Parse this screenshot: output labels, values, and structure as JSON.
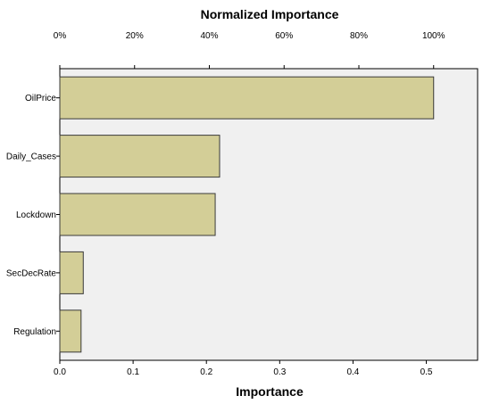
{
  "chart_data": {
    "type": "bar",
    "orientation": "horizontal",
    "title": "Normalized Importance",
    "xlabel": "Importance",
    "ylabel": "",
    "categories": [
      "OilPrice",
      "Daily_Cases",
      "Lockdown",
      "SecDecRate",
      "Regulation"
    ],
    "values": [
      0.51,
      0.218,
      0.212,
      0.032,
      0.029
    ],
    "xlim": [
      0,
      0.57
    ],
    "bottom_ticks": [
      "0.0",
      "0.1",
      "0.2",
      "0.3",
      "0.4",
      "0.5"
    ],
    "bottom_tick_values": [
      0,
      0.1,
      0.2,
      0.3,
      0.4,
      0.5
    ],
    "top_ticks": [
      "0%",
      "20%",
      "40%",
      "60%",
      "80%",
      "100%"
    ],
    "top_tick_fractions": [
      0,
      0.2,
      0.4,
      0.6,
      0.8,
      1.0
    ],
    "grid": false,
    "legend": "none",
    "colors": {
      "bar_fill": "#d3ce97",
      "bar_stroke": "#3a3a3a",
      "plot_background": "#f0f0f0",
      "axis": "#000000"
    }
  }
}
